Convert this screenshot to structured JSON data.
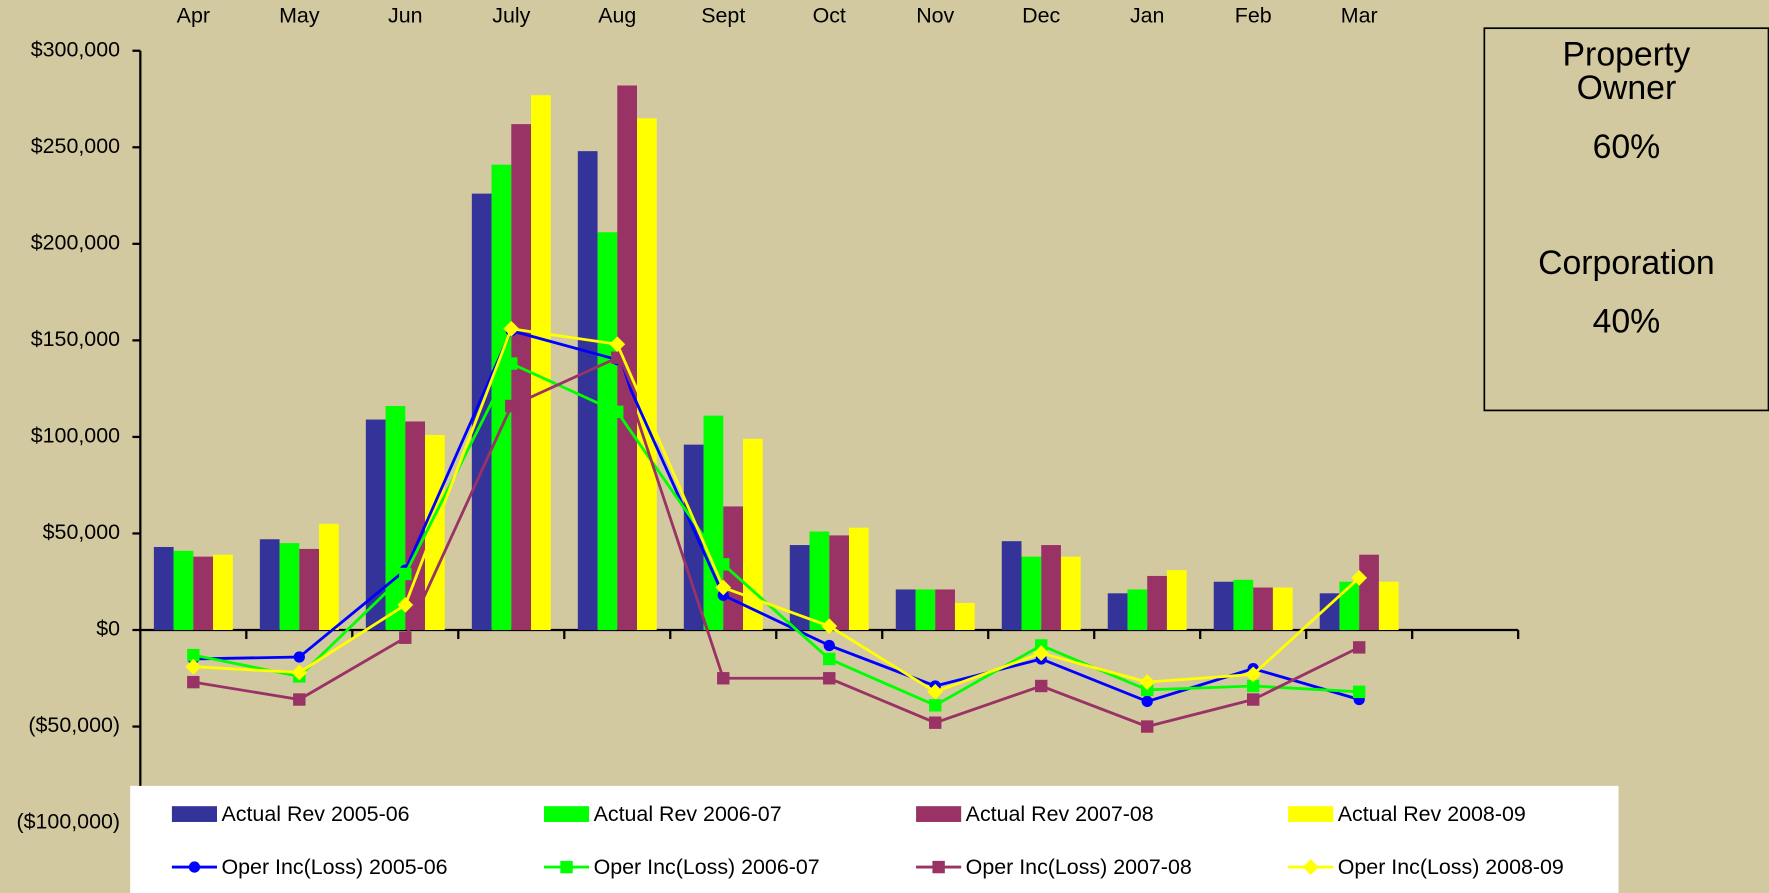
{
  "chart_data": {
    "type": "combo",
    "categories": [
      "Apr",
      "May",
      "Jun",
      "July",
      "Aug",
      "Sept",
      "Oct",
      "Nov",
      "Dec",
      "Jan",
      "Feb",
      "Mar",
      null
    ],
    "ylim": [
      -100000,
      300000
    ],
    "yticks": [
      {
        "value": 300000,
        "label": "$300,000"
      },
      {
        "value": 250000,
        "label": "$250,000"
      },
      {
        "value": 200000,
        "label": "$200,000"
      },
      {
        "value": 150000,
        "label": "$150,000"
      },
      {
        "value": 100000,
        "label": "$100,000"
      },
      {
        "value": 50000,
        "label": "$50,000"
      },
      {
        "value": 0,
        "label": "$0"
      },
      {
        "value": -50000,
        "label": "($50,000)"
      },
      {
        "value": -100000,
        "label": "($100,000)"
      }
    ],
    "negative_tick_color": "#ff0000",
    "series": [
      {
        "name": "Actual Rev 2005-06",
        "type": "bar",
        "color": "#333399",
        "values": [
          43000,
          47000,
          109000,
          226000,
          248000,
          96000,
          44000,
          21000,
          46000,
          19000,
          25000,
          19000,
          null
        ]
      },
      {
        "name": "Actual Rev 2006-07",
        "type": "bar",
        "color": "#00ff00",
        "values": [
          41000,
          45000,
          116000,
          241000,
          206000,
          111000,
          51000,
          21000,
          38000,
          21000,
          26000,
          25000,
          null
        ]
      },
      {
        "name": "Actual Rev 2007-08",
        "type": "bar",
        "color": "#993366",
        "values": [
          38000,
          42000,
          108000,
          262000,
          282000,
          64000,
          49000,
          21000,
          44000,
          28000,
          22000,
          39000,
          null
        ]
      },
      {
        "name": "Actual Rev 2008-09",
        "type": "bar",
        "color": "#ffff00",
        "values": [
          39000,
          55000,
          101000,
          277000,
          265000,
          99000,
          53000,
          14000,
          38000,
          31000,
          22000,
          25000,
          null
        ]
      },
      {
        "name": "Oper Inc(Loss) 2005-06",
        "type": "line",
        "marker": "circle",
        "color": "#0000ff",
        "values": [
          -15000,
          -14000,
          31000,
          155000,
          140000,
          18000,
          -8000,
          -29000,
          -15000,
          -37000,
          -20000,
          -36000,
          null
        ]
      },
      {
        "name": "Oper Inc(Loss) 2006-07",
        "type": "line",
        "marker": "square",
        "color": "#00ff00",
        "values": [
          -13000,
          -24000,
          29000,
          138000,
          113000,
          34000,
          -15000,
          -39000,
          -8000,
          -31000,
          -29000,
          -32000,
          null
        ]
      },
      {
        "name": "Oper Inc(Loss) 2007-08",
        "type": "line",
        "marker": "square",
        "color": "#993366",
        "values": [
          -27000,
          -36000,
          -4000,
          116000,
          141000,
          -25000,
          -25000,
          -48000,
          -29000,
          -50000,
          -36000,
          -9000,
          null
        ]
      },
      {
        "name": "Oper Inc(Loss) 2008-09",
        "type": "line",
        "marker": "diamond",
        "color": "#ffff00",
        "values": [
          -19000,
          -22000,
          13000,
          156000,
          148000,
          22000,
          2000,
          -32000,
          -12000,
          -27000,
          -23000,
          27000,
          null
        ]
      }
    ],
    "annotations": [
      "Property",
      "Owner",
      "60%",
      "Corporation",
      "40%"
    ]
  }
}
